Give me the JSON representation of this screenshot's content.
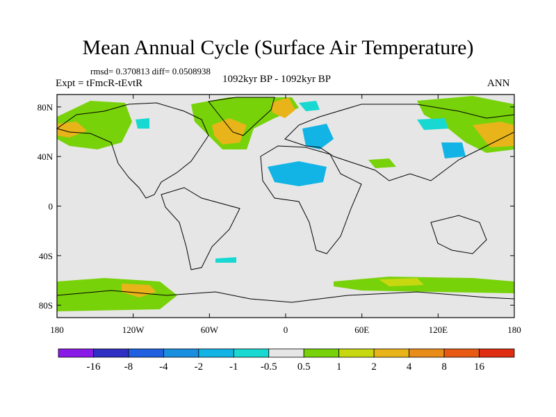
{
  "title": "Mean Annual Cycle (Surface Air Temperature)",
  "stats": "rmsd= 0.370813 diff= 0.0508938",
  "experiment": "Expt = tFmcR-tEvtR",
  "period": "1092kyr BP - 1092kyr BP",
  "season": "ANN",
  "lat_labels": [
    "80N",
    "40N",
    "0",
    "40S",
    "80S"
  ],
  "lat_values": [
    80,
    40,
    0,
    -40,
    -80
  ],
  "lon_labels": [
    "180",
    "120W",
    "60W",
    "0",
    "60E",
    "120E",
    "180"
  ],
  "lon_values": [
    -180,
    -120,
    -60,
    0,
    60,
    120,
    180
  ],
  "colorbar": {
    "labels": [
      "-16",
      "-8",
      "-4",
      "-2",
      "-1",
      "-0.5",
      "0.5",
      "1",
      "2",
      "4",
      "8",
      "16"
    ],
    "colors": [
      "#8a1be6",
      "#2f2fc4",
      "#1f5fe0",
      "#1a8fe0",
      "#12b4e6",
      "#18d8d2",
      "#e6e6e6",
      "#78d20a",
      "#c8d810",
      "#e8b41a",
      "#e88c1a",
      "#e85a14",
      "#e02c10"
    ]
  },
  "colors": {
    "background_field": "#e6e6e6",
    "coast": "#000000"
  }
}
